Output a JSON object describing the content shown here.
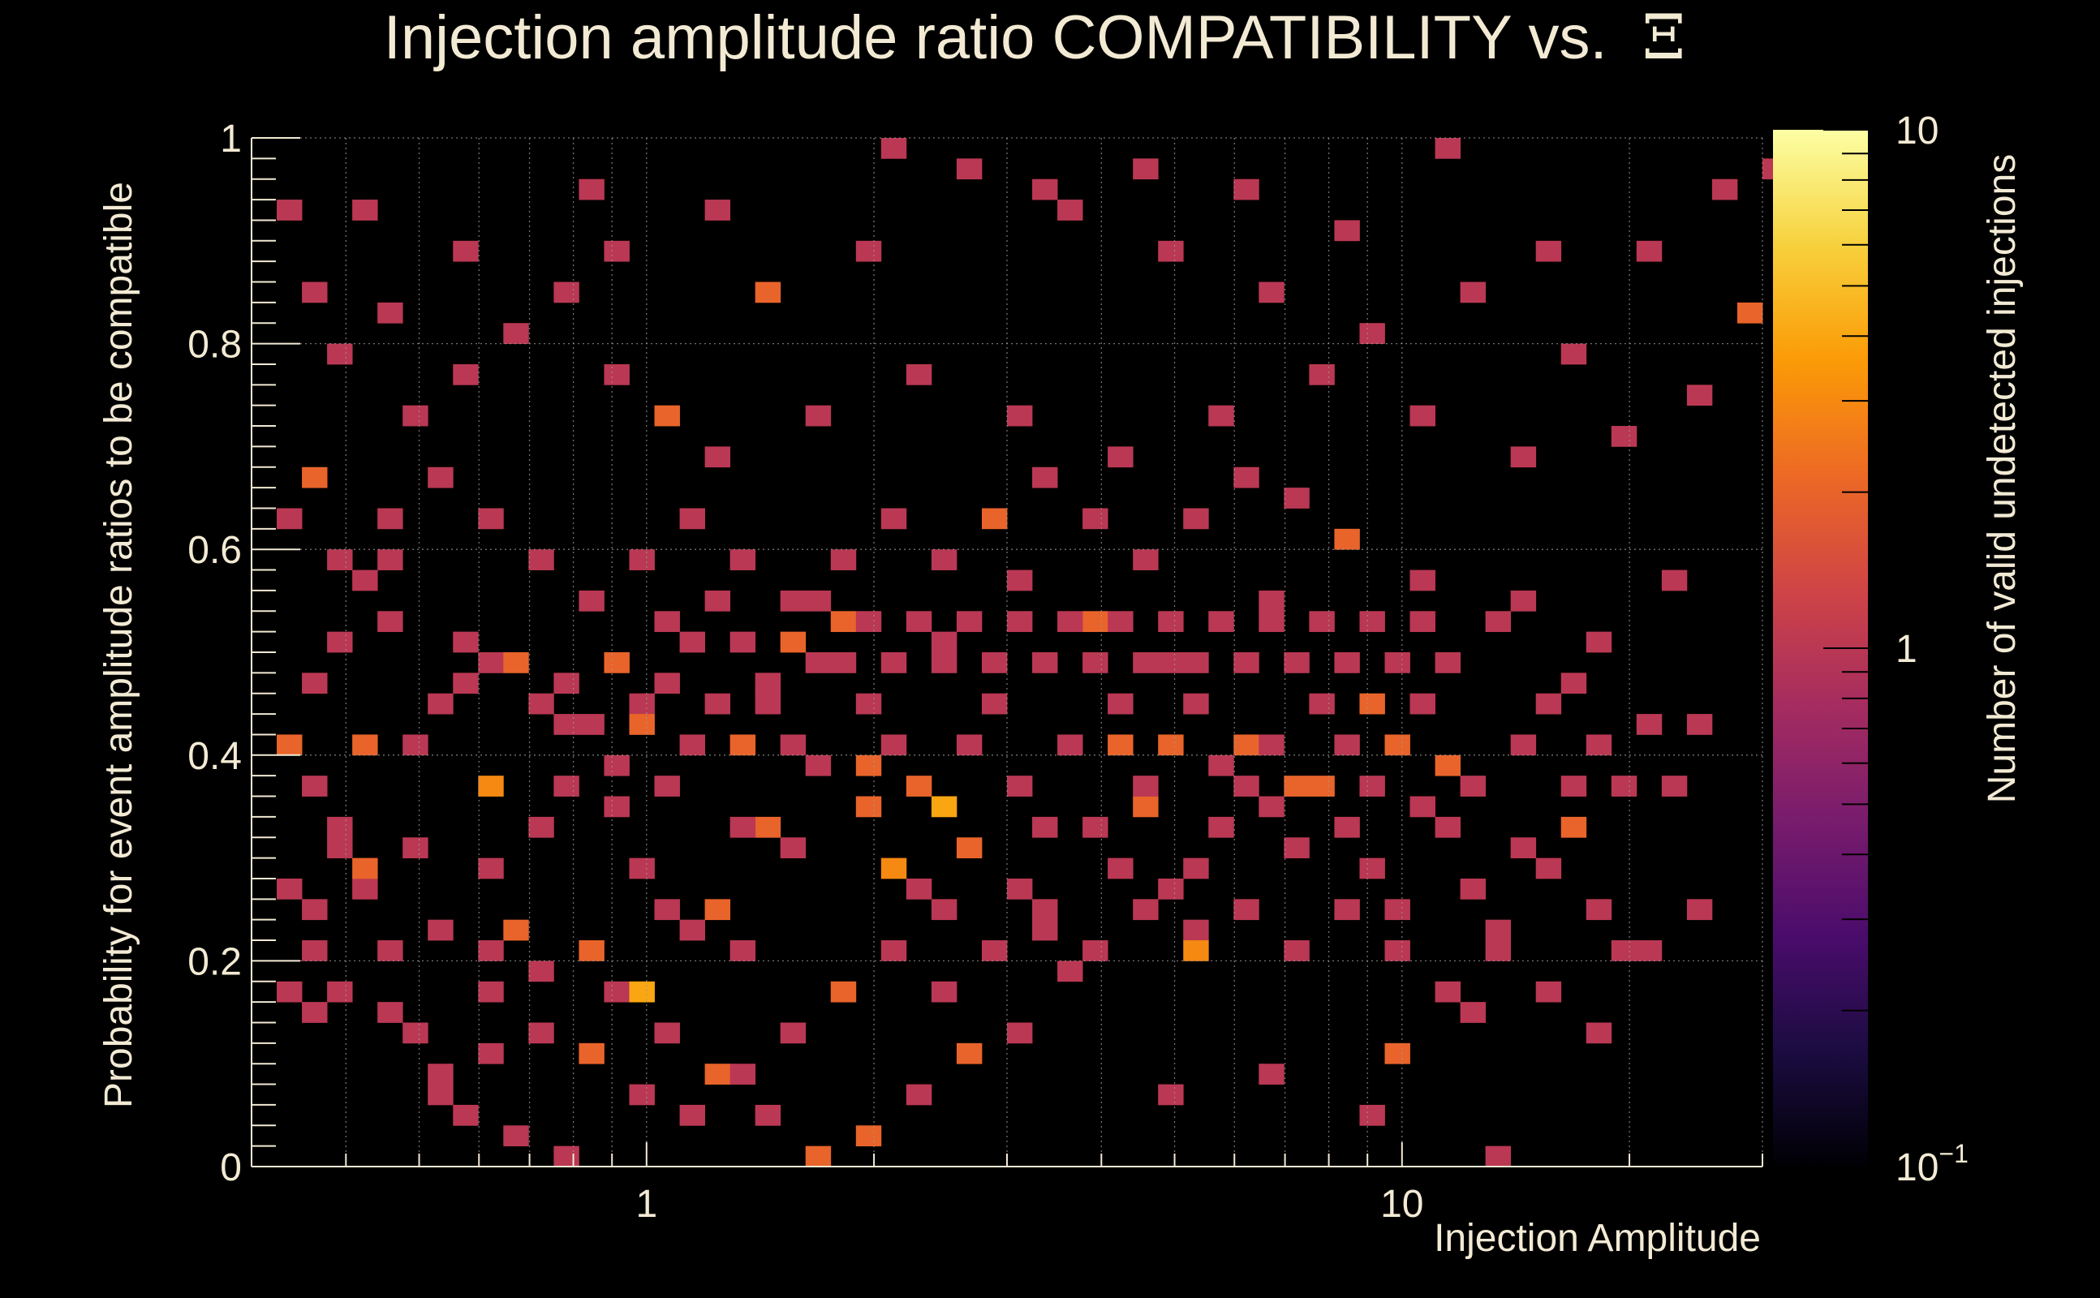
{
  "chart_data": {
    "type": "heatmap",
    "title": "Injection amplitude ratio COMPATIBILITY vs.",
    "title_symbol": "Ξ",
    "xlabel": "Injection Amplitude",
    "ylabel": "Probability for event amplitude ratios to be compatible",
    "zlabel": "Number of valid undetected injections",
    "x_scale": "log",
    "xlim": [
      0.3,
      30
    ],
    "ylim": [
      0,
      1
    ],
    "zlim": [
      0.1,
      10
    ],
    "z_scale": "log",
    "x_bins": 60,
    "y_bins": 50,
    "x_ticks": [
      {
        "value": 1,
        "label": "1"
      },
      {
        "value": 10,
        "label": "10"
      }
    ],
    "y_ticks": [
      {
        "value": 0,
        "label": "0"
      },
      {
        "value": 0.2,
        "label": "0.2"
      },
      {
        "value": 0.4,
        "label": "0.4"
      },
      {
        "value": 0.6,
        "label": "0.6"
      },
      {
        "value": 0.8,
        "label": "0.8"
      },
      {
        "value": 1,
        "label": "1"
      }
    ],
    "colorbar_ticks": [
      {
        "value": 10,
        "label": "10"
      },
      {
        "value": 1,
        "label": "1"
      },
      {
        "value": 0.1,
        "label": "10",
        "sup": "−1"
      }
    ],
    "colormap": [
      "#000004",
      "#1b0c41",
      "#4a0c6b",
      "#781c6d",
      "#a52c60",
      "#cf4446",
      "#ed6925",
      "#fb9b06",
      "#f7d13d",
      "#fcffa4"
    ],
    "cells": [
      [
        1,
        46,
        1
      ],
      [
        7,
        3,
        1
      ],
      [
        7,
        4,
        1
      ],
      [
        9,
        5,
        1
      ],
      [
        9,
        10,
        1
      ],
      [
        10,
        1,
        1
      ],
      [
        8,
        25,
        1
      ],
      [
        12,
        0,
        1
      ],
      [
        2,
        7,
        1
      ],
      [
        2,
        12,
        1
      ],
      [
        3,
        15,
        1
      ],
      [
        4,
        13,
        1
      ],
      [
        5,
        10,
        1
      ],
      [
        6,
        6,
        1
      ],
      [
        8,
        2,
        1
      ],
      [
        9,
        14,
        1
      ],
      [
        1,
        20,
        2
      ],
      [
        2,
        18,
        1
      ],
      [
        2,
        23,
        1
      ],
      [
        4,
        20,
        2
      ],
      [
        3,
        25,
        1
      ],
      [
        4,
        28,
        1
      ],
      [
        5,
        29,
        1
      ],
      [
        5,
        26,
        1
      ],
      [
        6,
        20,
        1
      ],
      [
        7,
        22,
        1
      ],
      [
        8,
        23,
        1
      ],
      [
        9,
        24,
        1
      ],
      [
        10,
        24,
        2
      ],
      [
        11,
        22,
        1
      ],
      [
        12,
        21,
        1
      ],
      [
        14,
        24,
        2
      ],
      [
        15,
        22,
        1
      ],
      [
        16,
        26,
        1
      ],
      [
        14,
        17,
        1
      ],
      [
        15,
        14,
        1
      ],
      [
        16,
        12,
        1
      ],
      [
        17,
        11,
        1
      ],
      [
        18,
        12,
        2
      ],
      [
        19,
        10,
        1
      ],
      [
        20,
        16,
        2
      ],
      [
        21,
        15,
        1
      ],
      [
        22,
        19,
        1
      ],
      [
        24,
        17,
        2
      ],
      [
        25,
        14,
        3
      ],
      [
        26,
        13,
        1
      ],
      [
        27,
        12,
        1
      ],
      [
        28,
        15,
        2
      ],
      [
        30,
        13,
        1
      ],
      [
        31,
        11,
        1
      ],
      [
        32,
        9,
        1
      ],
      [
        33,
        16,
        1
      ],
      [
        34,
        14,
        1
      ],
      [
        35,
        17,
        2
      ],
      [
        36,
        13,
        1
      ],
      [
        37,
        11,
        1
      ],
      [
        38,
        19,
        1
      ],
      [
        39,
        20,
        2
      ],
      [
        40,
        17,
        1
      ],
      [
        41,
        15,
        1
      ],
      [
        42,
        18,
        2
      ],
      [
        43,
        16,
        1
      ],
      [
        44,
        14,
        1
      ],
      [
        45,
        12,
        1
      ],
      [
        46,
        17,
        1
      ],
      [
        47,
        19,
        2
      ],
      [
        48,
        13,
        1
      ],
      [
        49,
        11,
        1
      ],
      [
        50,
        15,
        1
      ],
      [
        51,
        14,
        1
      ],
      [
        52,
        16,
        2
      ],
      [
        53,
        12,
        1
      ],
      [
        54,
        10,
        1
      ],
      [
        48,
        7,
        1
      ],
      [
        45,
        5,
        2
      ],
      [
        44,
        2,
        1
      ],
      [
        40,
        4,
        1
      ],
      [
        36,
        3,
        1
      ],
      [
        30,
        6,
        1
      ],
      [
        28,
        5,
        2
      ],
      [
        26,
        3,
        1
      ],
      [
        24,
        1,
        2
      ],
      [
        22,
        0,
        2
      ],
      [
        20,
        2,
        1
      ],
      [
        18,
        4,
        2
      ],
      [
        16,
        6,
        1
      ],
      [
        14,
        8,
        1
      ],
      [
        13,
        10,
        2
      ],
      [
        11,
        9,
        1
      ],
      [
        10,
        11,
        2
      ],
      [
        12,
        18,
        1
      ],
      [
        20,
        22,
        1
      ],
      [
        23,
        26,
        2
      ],
      [
        27,
        25,
        1
      ],
      [
        30,
        28,
        1
      ],
      [
        33,
        26,
        2
      ],
      [
        36,
        24,
        1
      ],
      [
        40,
        27,
        1
      ],
      [
        44,
        22,
        2
      ],
      [
        47,
        24,
        1
      ],
      [
        50,
        27,
        1
      ],
      [
        53,
        25,
        1
      ],
      [
        56,
        28,
        1
      ],
      [
        57,
        21,
        1
      ],
      [
        55,
        21,
        1
      ],
      [
        54,
        18,
        1
      ],
      [
        56,
        18,
        1
      ],
      [
        52,
        23,
        1
      ],
      [
        49,
        26,
        1
      ],
      [
        46,
        28,
        1
      ],
      [
        43,
        30,
        2
      ],
      [
        41,
        32,
        1
      ],
      [
        39,
        33,
        1
      ],
      [
        37,
        31,
        1
      ],
      [
        35,
        29,
        1
      ],
      [
        33,
        31,
        1
      ],
      [
        31,
        33,
        1
      ],
      [
        29,
        31,
        2
      ],
      [
        27,
        29,
        1
      ],
      [
        25,
        31,
        1
      ],
      [
        23,
        29,
        1
      ],
      [
        21,
        27,
        1
      ],
      [
        19,
        29,
        1
      ],
      [
        17,
        31,
        1
      ],
      [
        15,
        29,
        1
      ],
      [
        13,
        27,
        1
      ],
      [
        11,
        29,
        1
      ],
      [
        9,
        31,
        1
      ],
      [
        7,
        33,
        1
      ],
      [
        5,
        31,
        1
      ],
      [
        3,
        29,
        1
      ],
      [
        1,
        31,
        1
      ],
      [
        2,
        33,
        2
      ],
      [
        6,
        36,
        1
      ],
      [
        8,
        38,
        1
      ],
      [
        10,
        40,
        1
      ],
      [
        14,
        38,
        1
      ],
      [
        16,
        36,
        2
      ],
      [
        18,
        34,
        1
      ],
      [
        22,
        36,
        1
      ],
      [
        26,
        38,
        1
      ],
      [
        30,
        36,
        1
      ],
      [
        34,
        34,
        1
      ],
      [
        38,
        36,
        1
      ],
      [
        42,
        38,
        1
      ],
      [
        46,
        36,
        1
      ],
      [
        50,
        34,
        1
      ],
      [
        44,
        40,
        1
      ],
      [
        40,
        42,
        1
      ],
      [
        36,
        44,
        1
      ],
      [
        32,
        46,
        1
      ],
      [
        28,
        48,
        1
      ],
      [
        24,
        44,
        1
      ],
      [
        20,
        42,
        2
      ],
      [
        18,
        46,
        1
      ],
      [
        14,
        44,
        1
      ],
      [
        12,
        42,
        1
      ],
      [
        8,
        44,
        1
      ],
      [
        4,
        46,
        1
      ],
      [
        2,
        42,
        1
      ],
      [
        3,
        39,
        1
      ],
      [
        5,
        41,
        1
      ],
      [
        13,
        47,
        1
      ],
      [
        25,
        49,
        1
      ],
      [
        31,
        47,
        1
      ],
      [
        35,
        48,
        1
      ],
      [
        39,
        47,
        1
      ],
      [
        43,
        45,
        1
      ],
      [
        47,
        49,
        1
      ],
      [
        51,
        44,
        1
      ],
      [
        48,
        42,
        1
      ],
      [
        52,
        39,
        1
      ],
      [
        55,
        44,
        1
      ],
      [
        58,
        47,
        1
      ],
      [
        54,
        35,
        1
      ],
      [
        57,
        37,
        1
      ],
      [
        59,
        41,
        2
      ],
      [
        49,
        0,
        1
      ],
      [
        60,
        48,
        1
      ],
      [
        9,
        18,
        3
      ],
      [
        27,
        17,
        4
      ],
      [
        15,
        8,
        4
      ],
      [
        37,
        10,
        3
      ],
      [
        34,
        20,
        2
      ],
      [
        41,
        18,
        2
      ],
      [
        24,
        19,
        2
      ],
      [
        19,
        20,
        2
      ],
      [
        11,
        16,
        1
      ],
      [
        6,
        15,
        1
      ],
      [
        4,
        14,
        2
      ],
      [
        3,
        16,
        1
      ],
      [
        2,
        10,
        1
      ],
      [
        1,
        13,
        1
      ],
      [
        1,
        8,
        1
      ],
      [
        3,
        8,
        1
      ],
      [
        5,
        7,
        1
      ],
      [
        7,
        11,
        1
      ],
      [
        9,
        8,
        1
      ],
      [
        11,
        6,
        1
      ],
      [
        13,
        5,
        2
      ],
      [
        15,
        3,
        1
      ],
      [
        17,
        2,
        1
      ],
      [
        19,
        4,
        1
      ],
      [
        21,
        6,
        1
      ],
      [
        23,
        8,
        2
      ],
      [
        25,
        10,
        1
      ],
      [
        27,
        8,
        1
      ],
      [
        29,
        10,
        1
      ],
      [
        31,
        12,
        1
      ],
      [
        33,
        10,
        1
      ],
      [
        35,
        12,
        1
      ],
      [
        37,
        14,
        1
      ],
      [
        39,
        12,
        1
      ],
      [
        41,
        10,
        1
      ],
      [
        43,
        12,
        1
      ],
      [
        45,
        10,
        1
      ],
      [
        47,
        8,
        1
      ],
      [
        49,
        10,
        1
      ],
      [
        51,
        8,
        1
      ],
      [
        53,
        6,
        1
      ],
      [
        55,
        10,
        1
      ],
      [
        57,
        12,
        1
      ],
      [
        16,
        18,
        1
      ],
      [
        17,
        20,
        1
      ],
      [
        18,
        22,
        1
      ],
      [
        19,
        16,
        1
      ],
      [
        21,
        20,
        1
      ],
      [
        22,
        24,
        1
      ],
      [
        24,
        22,
        1
      ],
      [
        25,
        20,
        1
      ],
      [
        26,
        18,
        2
      ],
      [
        28,
        20,
        1
      ],
      [
        29,
        22,
        1
      ],
      [
        30,
        18,
        1
      ],
      [
        31,
        16,
        1
      ],
      [
        32,
        20,
        1
      ],
      [
        34,
        22,
        1
      ],
      [
        35,
        18,
        1
      ],
      [
        36,
        20,
        2
      ],
      [
        37,
        22,
        1
      ],
      [
        38,
        16,
        1
      ],
      [
        39,
        18,
        1
      ],
      [
        40,
        20,
        1
      ],
      [
        42,
        22,
        1
      ],
      [
        43,
        20,
        1
      ],
      [
        44,
        18,
        1
      ],
      [
        45,
        20,
        2
      ],
      [
        46,
        22,
        1
      ],
      [
        47,
        16,
        1
      ],
      [
        48,
        18,
        1
      ],
      [
        50,
        20,
        1
      ],
      [
        51,
        22,
        1
      ],
      [
        52,
        18,
        1
      ],
      [
        53,
        20,
        1
      ],
      [
        12,
        23,
        1
      ],
      [
        13,
        21,
        1
      ],
      [
        14,
        19,
        1
      ],
      [
        15,
        21,
        2
      ],
      [
        16,
        23,
        1
      ],
      [
        17,
        25,
        1
      ],
      [
        18,
        27,
        1
      ],
      [
        19,
        25,
        1
      ],
      [
        20,
        23,
        1
      ],
      [
        21,
        25,
        2
      ],
      [
        22,
        27,
        1
      ],
      [
        23,
        24,
        1
      ],
      [
        24,
        26,
        1
      ],
      [
        25,
        24,
        1
      ],
      [
        26,
        26,
        1
      ],
      [
        27,
        24,
        1
      ],
      [
        28,
        26,
        1
      ],
      [
        29,
        24,
        1
      ],
      [
        30,
        26,
        1
      ],
      [
        31,
        24,
        1
      ],
      [
        32,
        26,
        1
      ],
      [
        33,
        24,
        1
      ],
      [
        34,
        26,
        1
      ],
      [
        35,
        24,
        1
      ],
      [
        36,
        26,
        1
      ],
      [
        37,
        24,
        1
      ],
      [
        38,
        26,
        1
      ],
      [
        39,
        24,
        1
      ],
      [
        40,
        26,
        1
      ],
      [
        41,
        24,
        1
      ],
      [
        42,
        26,
        1
      ],
      [
        43,
        24,
        1
      ],
      [
        44,
        26,
        1
      ],
      [
        45,
        24,
        1
      ],
      [
        46,
        26,
        1
      ]
    ]
  }
}
